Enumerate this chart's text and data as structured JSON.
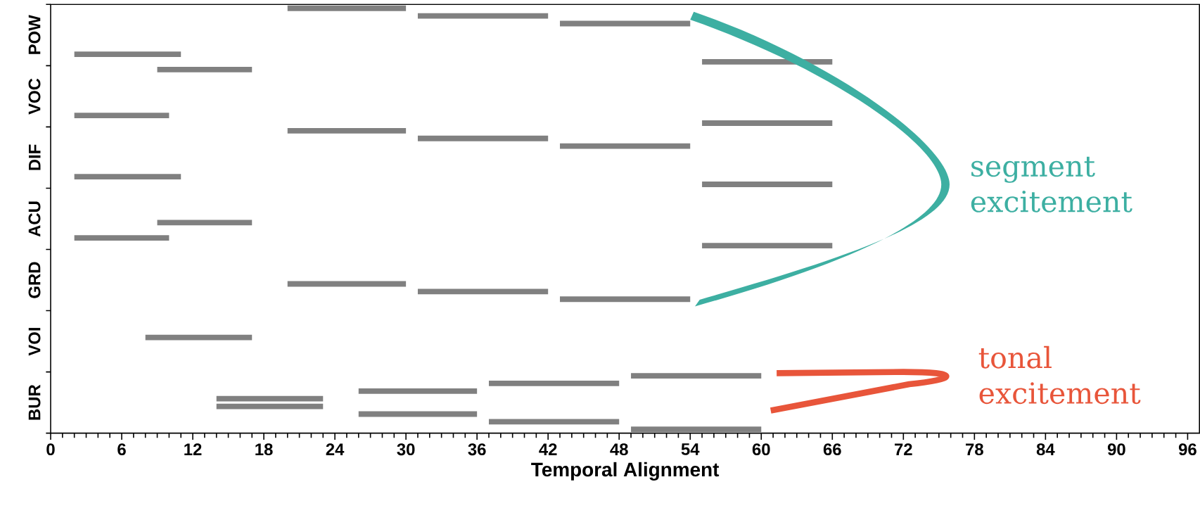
{
  "chart_data": {
    "type": "bar",
    "orientation": "horizontal",
    "xlabel": "Temporal Alignment",
    "categories": [
      "POW",
      "VOC",
      "DIF",
      "ACU",
      "GRD",
      "VOI",
      "BUR"
    ],
    "series": [
      {
        "color": "#808080",
        "base": [
          20,
          9,
          20,
          null,
          null,
          null,
          49
        ],
        "values": [
          10,
          8,
          10,
          null,
          null,
          null,
          11
        ]
      },
      {
        "color": "#808080",
        "base": [
          31,
          null,
          31,
          null,
          null,
          null,
          37
        ],
        "values": [
          11,
          null,
          11,
          null,
          null,
          null,
          11
        ]
      },
      {
        "color": "#808080",
        "base": [
          43,
          null,
          43,
          null,
          null,
          null,
          26
        ],
        "values": [
          11,
          null,
          11,
          null,
          null,
          null,
          10
        ]
      },
      {
        "color": "#808080",
        "base": [
          null,
          null,
          null,
          null,
          null,
          8,
          14
        ],
        "values": [
          null,
          null,
          null,
          null,
          null,
          9,
          9
        ]
      },
      {
        "color": "#808080",
        "base": [
          null,
          null,
          null,
          9,
          20,
          null,
          14
        ],
        "values": [
          null,
          null,
          null,
          8,
          10,
          null,
          9
        ]
      },
      {
        "color": "#808080",
        "base": [
          null,
          null,
          null,
          null,
          31,
          null,
          26
        ],
        "values": [
          null,
          null,
          null,
          null,
          11,
          null,
          10
        ]
      },
      {
        "color": "#808080",
        "base": [
          2,
          2,
          2,
          2,
          43,
          null,
          37
        ],
        "values": [
          9,
          8,
          9,
          8,
          11,
          null,
          11
        ]
      },
      {
        "color": "#808080",
        "base": [
          55,
          55,
          55,
          55,
          null,
          null,
          49
        ],
        "values": [
          11,
          11,
          11,
          11,
          null,
          null,
          11
        ]
      }
    ],
    "xlim": [
      0,
      97
    ],
    "xticks": [
      0,
      6,
      12,
      18,
      24,
      30,
      36,
      42,
      48,
      54,
      60,
      66,
      72,
      78,
      84,
      90,
      96
    ],
    "annotations": [
      "segment excitement",
      "tonal excitement"
    ]
  }
}
